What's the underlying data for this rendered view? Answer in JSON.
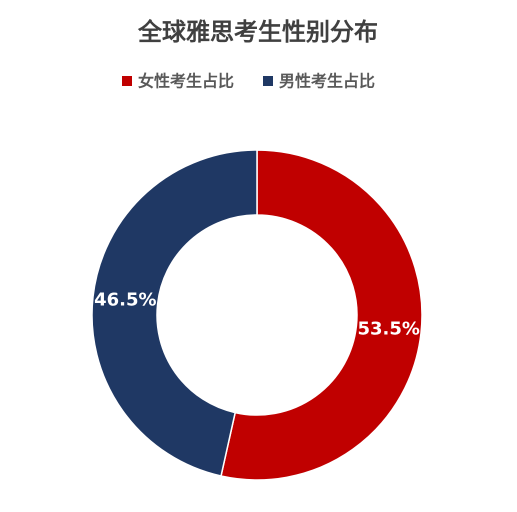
{
  "chart_data": {
    "type": "donut",
    "title": "全球雅思考生性别分布",
    "categories": [
      "女性考生占比",
      "男性考生占比"
    ],
    "values": [
      53.5,
      46.5
    ],
    "value_labels": [
      "53.5%",
      "46.5%"
    ],
    "colors": [
      "#C00000",
      "#1F3864"
    ]
  }
}
